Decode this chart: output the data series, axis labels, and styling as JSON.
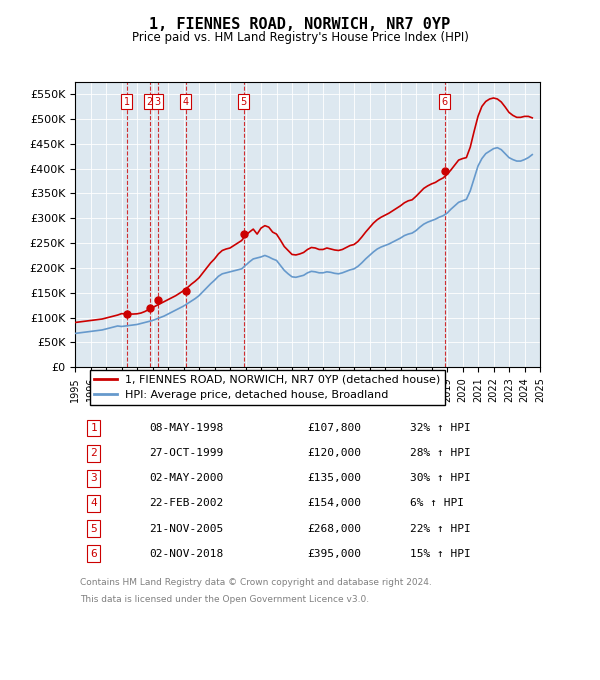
{
  "title": "1, FIENNES ROAD, NORWICH, NR7 0YP",
  "subtitle": "Price paid vs. HM Land Registry's House Price Index (HPI)",
  "legend_line1": "1, FIENNES ROAD, NORWICH, NR7 0YP (detached house)",
  "legend_line2": "HPI: Average price, detached house, Broadland",
  "footer1": "Contains HM Land Registry data © Crown copyright and database right 2024.",
  "footer2": "This data is licensed under the Open Government Licence v3.0.",
  "sale_color": "#cc0000",
  "hpi_color": "#6699cc",
  "background_color": "#dde8f0",
  "ylim": [
    0,
    575000
  ],
  "yticks": [
    0,
    50000,
    100000,
    150000,
    200000,
    250000,
    300000,
    350000,
    400000,
    450000,
    500000,
    550000
  ],
  "sales": [
    {
      "num": 1,
      "date_str": "08-MAY-1998",
      "date_x": 1998.35,
      "price": 107800,
      "pct": "32%",
      "dir": "↑"
    },
    {
      "num": 2,
      "date_str": "27-OCT-1999",
      "date_x": 1999.82,
      "price": 120000,
      "pct": "28%",
      "dir": "↑"
    },
    {
      "num": 3,
      "date_str": "02-MAY-2000",
      "date_x": 2000.33,
      "price": 135000,
      "pct": "30%",
      "dir": "↑"
    },
    {
      "num": 4,
      "date_str": "22-FEB-2002",
      "date_x": 2002.14,
      "price": 154000,
      "pct": "6%",
      "dir": "↑"
    },
    {
      "num": 5,
      "date_str": "21-NOV-2005",
      "date_x": 2005.89,
      "price": 268000,
      "pct": "22%",
      "dir": "↑"
    },
    {
      "num": 6,
      "date_str": "02-NOV-2018",
      "date_x": 2018.84,
      "price": 395000,
      "pct": "15%",
      "dir": "↑"
    }
  ],
  "hpi_x": [
    1995.0,
    1995.25,
    1995.5,
    1995.75,
    1996.0,
    1996.25,
    1996.5,
    1996.75,
    1997.0,
    1997.25,
    1997.5,
    1997.75,
    1998.0,
    1998.25,
    1998.5,
    1998.75,
    1999.0,
    1999.25,
    1999.5,
    1999.75,
    2000.0,
    2000.25,
    2000.5,
    2000.75,
    2001.0,
    2001.25,
    2001.5,
    2001.75,
    2002.0,
    2002.25,
    2002.5,
    2002.75,
    2003.0,
    2003.25,
    2003.5,
    2003.75,
    2004.0,
    2004.25,
    2004.5,
    2004.75,
    2005.0,
    2005.25,
    2005.5,
    2005.75,
    2006.0,
    2006.25,
    2006.5,
    2006.75,
    2007.0,
    2007.25,
    2007.5,
    2007.75,
    2008.0,
    2008.25,
    2008.5,
    2008.75,
    2009.0,
    2009.25,
    2009.5,
    2009.75,
    2010.0,
    2010.25,
    2010.5,
    2010.75,
    2011.0,
    2011.25,
    2011.5,
    2011.75,
    2012.0,
    2012.25,
    2012.5,
    2012.75,
    2013.0,
    2013.25,
    2013.5,
    2013.75,
    2014.0,
    2014.25,
    2014.5,
    2014.75,
    2015.0,
    2015.25,
    2015.5,
    2015.75,
    2016.0,
    2016.25,
    2016.5,
    2016.75,
    2017.0,
    2017.25,
    2017.5,
    2017.75,
    2018.0,
    2018.25,
    2018.5,
    2018.75,
    2019.0,
    2019.25,
    2019.5,
    2019.75,
    2020.0,
    2020.25,
    2020.5,
    2020.75,
    2021.0,
    2021.25,
    2021.5,
    2021.75,
    2022.0,
    2022.25,
    2022.5,
    2022.75,
    2023.0,
    2023.25,
    2023.5,
    2023.75,
    2024.0,
    2024.25,
    2024.5
  ],
  "hpi_y": [
    68000,
    69000,
    70000,
    71000,
    72000,
    73000,
    74000,
    75000,
    77000,
    79000,
    81000,
    83000,
    82000,
    83000,
    84000,
    85000,
    86000,
    88000,
    90000,
    92000,
    94000,
    97000,
    100000,
    103000,
    107000,
    111000,
    115000,
    119000,
    123000,
    128000,
    133000,
    138000,
    144000,
    152000,
    160000,
    168000,
    175000,
    183000,
    188000,
    190000,
    192000,
    194000,
    196000,
    198000,
    205000,
    212000,
    218000,
    220000,
    222000,
    225000,
    222000,
    218000,
    215000,
    205000,
    195000,
    188000,
    182000,
    181000,
    183000,
    185000,
    190000,
    193000,
    192000,
    190000,
    190000,
    192000,
    191000,
    189000,
    188000,
    190000,
    193000,
    196000,
    198000,
    203000,
    210000,
    218000,
    225000,
    232000,
    238000,
    242000,
    245000,
    248000,
    252000,
    256000,
    260000,
    265000,
    268000,
    270000,
    275000,
    282000,
    288000,
    292000,
    295000,
    298000,
    302000,
    305000,
    310000,
    318000,
    325000,
    332000,
    335000,
    338000,
    355000,
    380000,
    405000,
    420000,
    430000,
    435000,
    440000,
    442000,
    438000,
    430000,
    422000,
    418000,
    415000,
    415000,
    418000,
    422000,
    428000
  ],
  "red_x": [
    1995.0,
    1995.25,
    1995.5,
    1995.75,
    1996.0,
    1996.25,
    1996.5,
    1996.75,
    1997.0,
    1997.25,
    1997.5,
    1997.75,
    1998.0,
    1998.25,
    1998.5,
    1998.75,
    1999.0,
    1999.25,
    1999.5,
    1999.75,
    2000.0,
    2000.25,
    2000.5,
    2000.75,
    2001.0,
    2001.25,
    2001.5,
    2001.75,
    2002.0,
    2002.25,
    2002.5,
    2002.75,
    2003.0,
    2003.25,
    2003.5,
    2003.75,
    2004.0,
    2004.25,
    2004.5,
    2004.75,
    2005.0,
    2005.25,
    2005.5,
    2005.75,
    2006.0,
    2006.25,
    2006.5,
    2006.75,
    2007.0,
    2007.25,
    2007.5,
    2007.75,
    2008.0,
    2008.25,
    2008.5,
    2008.75,
    2009.0,
    2009.25,
    2009.5,
    2009.75,
    2010.0,
    2010.25,
    2010.5,
    2010.75,
    2011.0,
    2011.25,
    2011.5,
    2011.75,
    2012.0,
    2012.25,
    2012.5,
    2012.75,
    2013.0,
    2013.25,
    2013.5,
    2013.75,
    2014.0,
    2014.25,
    2014.5,
    2014.75,
    2015.0,
    2015.25,
    2015.5,
    2015.75,
    2016.0,
    2016.25,
    2016.5,
    2016.75,
    2017.0,
    2017.25,
    2017.5,
    2017.75,
    2018.0,
    2018.25,
    2018.5,
    2018.75,
    2019.0,
    2019.25,
    2019.5,
    2019.75,
    2020.0,
    2020.25,
    2020.5,
    2020.75,
    2021.0,
    2021.25,
    2021.5,
    2021.75,
    2022.0,
    2022.25,
    2022.5,
    2022.75,
    2023.0,
    2023.25,
    2023.5,
    2023.75,
    2024.0,
    2024.25,
    2024.5
  ],
  "red_y": [
    90000,
    91000,
    92000,
    93000,
    94000,
    95000,
    96000,
    97000,
    99000,
    101000,
    103000,
    105000,
    107800,
    107500,
    107000,
    107000,
    107500,
    109000,
    112000,
    116000,
    120000,
    124000,
    128000,
    132000,
    136000,
    140000,
    144000,
    149000,
    154000,
    160000,
    167000,
    173000,
    180000,
    190000,
    200000,
    210000,
    218000,
    228000,
    235000,
    238000,
    240000,
    245000,
    250000,
    255000,
    265000,
    272000,
    278000,
    268000,
    280000,
    285000,
    282000,
    272000,
    268000,
    256000,
    243000,
    235000,
    227000,
    226000,
    228000,
    231000,
    237000,
    241000,
    240000,
    237000,
    237000,
    240000,
    238000,
    236000,
    235000,
    237000,
    241000,
    245000,
    247000,
    253000,
    262000,
    272000,
    281000,
    290000,
    297000,
    302000,
    306000,
    310000,
    315000,
    320000,
    325000,
    331000,
    335000,
    337000,
    344000,
    352000,
    360000,
    365000,
    369000,
    372000,
    377000,
    381000,
    388000,
    397000,
    407000,
    417000,
    420000,
    422000,
    443000,
    475000,
    505000,
    525000,
    535000,
    540000,
    542000,
    540000,
    534000,
    524000,
    513000,
    507000,
    503000,
    503000,
    505000,
    505000,
    502000
  ],
  "xlim": [
    1995.0,
    2025.0
  ],
  "xticks": [
    1995,
    1996,
    1997,
    1998,
    1999,
    2000,
    2001,
    2002,
    2003,
    2004,
    2005,
    2006,
    2007,
    2008,
    2009,
    2010,
    2011,
    2012,
    2013,
    2014,
    2015,
    2016,
    2017,
    2018,
    2019,
    2020,
    2021,
    2022,
    2023,
    2024,
    2025
  ]
}
